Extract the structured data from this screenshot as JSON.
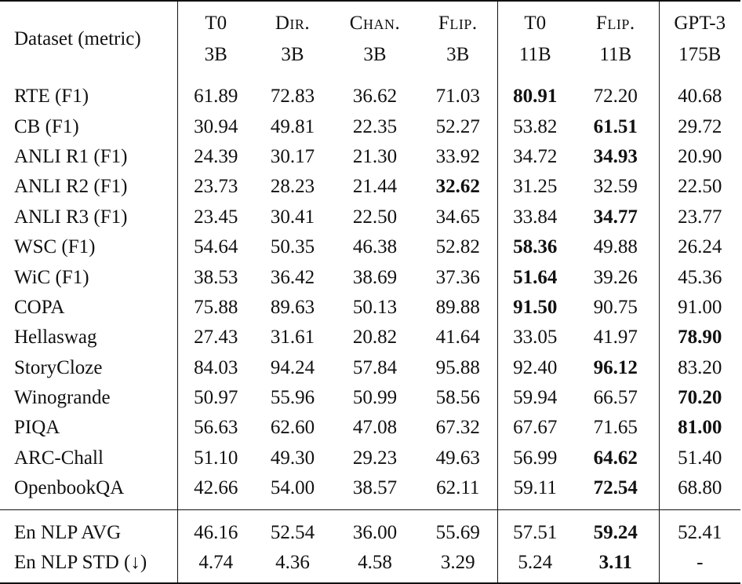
{
  "header": {
    "dataset_label": "Dataset (metric)",
    "columns": [
      {
        "name": "T0",
        "size": "3B",
        "small_caps": false
      },
      {
        "name": "Dir.",
        "size": "3B",
        "small_caps": true
      },
      {
        "name": "Chan.",
        "size": "3B",
        "small_caps": true
      },
      {
        "name": "Flip.",
        "size": "3B",
        "small_caps": true
      },
      {
        "name": "T0",
        "size": "11B",
        "small_caps": false
      },
      {
        "name": "Flip.",
        "size": "11B",
        "small_caps": true
      },
      {
        "name": "GPT-3",
        "size": "175B",
        "small_caps": false
      }
    ]
  },
  "rows": [
    {
      "dataset": "RTE (F1)",
      "values": [
        "61.89",
        "72.83",
        "36.62",
        "71.03",
        "80.91",
        "72.20",
        "40.68"
      ],
      "bold": 4
    },
    {
      "dataset": "CB (F1)",
      "values": [
        "30.94",
        "49.81",
        "22.35",
        "52.27",
        "53.82",
        "61.51",
        "29.72"
      ],
      "bold": 5
    },
    {
      "dataset": "ANLI R1 (F1)",
      "values": [
        "24.39",
        "30.17",
        "21.30",
        "33.92",
        "34.72",
        "34.93",
        "20.90"
      ],
      "bold": 5
    },
    {
      "dataset": "ANLI R2 (F1)",
      "values": [
        "23.73",
        "28.23",
        "21.44",
        "32.62",
        "31.25",
        "32.59",
        "22.50"
      ],
      "bold": 3
    },
    {
      "dataset": "ANLI R3 (F1)",
      "values": [
        "23.45",
        "30.41",
        "22.50",
        "34.65",
        "33.84",
        "34.77",
        "23.77"
      ],
      "bold": 5
    },
    {
      "dataset": "WSC (F1)",
      "values": [
        "54.64",
        "50.35",
        "46.38",
        "52.82",
        "58.36",
        "49.88",
        "26.24"
      ],
      "bold": 4
    },
    {
      "dataset": "WiC (F1)",
      "values": [
        "38.53",
        "36.42",
        "38.69",
        "37.36",
        "51.64",
        "39.26",
        "45.36"
      ],
      "bold": 4
    },
    {
      "dataset": "COPA",
      "values": [
        "75.88",
        "89.63",
        "50.13",
        "89.88",
        "91.50",
        "90.75",
        "91.00"
      ],
      "bold": 4
    },
    {
      "dataset": "Hellaswag",
      "values": [
        "27.43",
        "31.61",
        "20.82",
        "41.64",
        "33.05",
        "41.97",
        "78.90"
      ],
      "bold": 6
    },
    {
      "dataset": "StoryCloze",
      "values": [
        "84.03",
        "94.24",
        "57.84",
        "95.88",
        "92.40",
        "96.12",
        "83.20"
      ],
      "bold": 5
    },
    {
      "dataset": "Winogrande",
      "values": [
        "50.97",
        "55.96",
        "50.99",
        "58.56",
        "59.94",
        "66.57",
        "70.20"
      ],
      "bold": 6
    },
    {
      "dataset": "PIQA",
      "values": [
        "56.63",
        "62.60",
        "47.08",
        "67.32",
        "67.67",
        "71.65",
        "81.00"
      ],
      "bold": 6
    },
    {
      "dataset": "ARC-Chall",
      "values": [
        "51.10",
        "49.30",
        "29.23",
        "49.63",
        "56.99",
        "64.62",
        "51.40"
      ],
      "bold": 5
    },
    {
      "dataset": "OpenbookQA",
      "values": [
        "42.66",
        "54.00",
        "38.57",
        "62.11",
        "59.11",
        "72.54",
        "68.80"
      ],
      "bold": 5
    }
  ],
  "summary_rows": [
    {
      "dataset": "En NLP AVG",
      "values": [
        "46.16",
        "52.54",
        "36.00",
        "55.69",
        "57.51",
        "59.24",
        "52.41"
      ],
      "bold": 5
    },
    {
      "dataset": "En NLP STD (↓)",
      "values": [
        "4.74",
        "4.36",
        "4.58",
        "3.29",
        "5.24",
        "3.11",
        "-"
      ],
      "bold": 5
    }
  ]
}
